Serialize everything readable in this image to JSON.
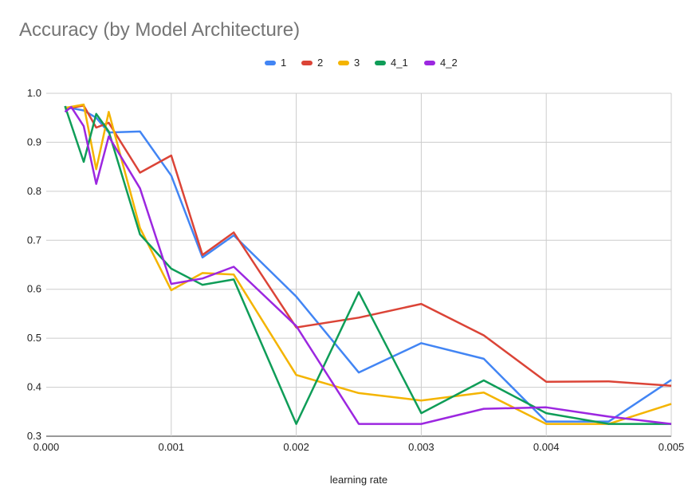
{
  "chart_data": {
    "type": "line",
    "title": "Accuracy (by Model Architecture)",
    "xlabel": "learning rate",
    "ylabel": "",
    "xlim": [
      0.0,
      0.005
    ],
    "ylim": [
      0.3,
      1.0
    ],
    "x_ticks": [
      "0.000",
      "0.001",
      "0.002",
      "0.003",
      "0.004",
      "0.005"
    ],
    "y_ticks": [
      "0.3",
      "0.4",
      "0.5",
      "0.6",
      "0.7",
      "0.8",
      "0.9",
      "1.0"
    ],
    "grid": true,
    "legend_position": "top",
    "series": [
      {
        "name": "1",
        "color": "#4285F4",
        "points": [
          [
            0.00015,
            0.972
          ],
          [
            0.0003,
            0.965
          ],
          [
            0.0004,
            0.95
          ],
          [
            0.0005,
            0.92
          ],
          [
            0.00075,
            0.922
          ],
          [
            0.001,
            0.832
          ],
          [
            0.00125,
            0.665
          ],
          [
            0.0015,
            0.71
          ],
          [
            0.002,
            0.585
          ],
          [
            0.0025,
            0.43
          ],
          [
            0.003,
            0.49
          ],
          [
            0.0035,
            0.458
          ],
          [
            0.004,
            0.33
          ],
          [
            0.0045,
            0.33
          ],
          [
            0.005,
            0.415
          ]
        ]
      },
      {
        "name": "2",
        "color": "#DB4437",
        "points": [
          [
            0.00015,
            0.968
          ],
          [
            0.0003,
            0.975
          ],
          [
            0.0004,
            0.93
          ],
          [
            0.0005,
            0.94
          ],
          [
            0.00075,
            0.838
          ],
          [
            0.001,
            0.873
          ],
          [
            0.00125,
            0.67
          ],
          [
            0.0015,
            0.716
          ],
          [
            0.002,
            0.522
          ],
          [
            0.0025,
            0.542
          ],
          [
            0.003,
            0.57
          ],
          [
            0.0035,
            0.506
          ],
          [
            0.004,
            0.411
          ],
          [
            0.0045,
            0.412
          ],
          [
            0.005,
            0.403
          ]
        ]
      },
      {
        "name": "3",
        "color": "#F4B400",
        "points": [
          [
            0.00015,
            0.97
          ],
          [
            0.0003,
            0.977
          ],
          [
            0.0004,
            0.845
          ],
          [
            0.0005,
            0.962
          ],
          [
            0.00075,
            0.725
          ],
          [
            0.001,
            0.598
          ],
          [
            0.00125,
            0.633
          ],
          [
            0.0015,
            0.63
          ],
          [
            0.002,
            0.425
          ],
          [
            0.0025,
            0.388
          ],
          [
            0.003,
            0.373
          ],
          [
            0.0035,
            0.389
          ],
          [
            0.004,
            0.325
          ],
          [
            0.0045,
            0.325
          ],
          [
            0.005,
            0.366
          ]
        ]
      },
      {
        "name": "4_1",
        "color": "#0F9D58",
        "points": [
          [
            0.00015,
            0.974
          ],
          [
            0.0003,
            0.86
          ],
          [
            0.0004,
            0.958
          ],
          [
            0.0005,
            0.922
          ],
          [
            0.00075,
            0.712
          ],
          [
            0.001,
            0.642
          ],
          [
            0.00125,
            0.609
          ],
          [
            0.0015,
            0.62
          ],
          [
            0.002,
            0.325
          ],
          [
            0.0025,
            0.594
          ],
          [
            0.003,
            0.347
          ],
          [
            0.0035,
            0.414
          ],
          [
            0.004,
            0.347
          ],
          [
            0.0045,
            0.325
          ],
          [
            0.005,
            0.325
          ]
        ]
      },
      {
        "name": "4_2",
        "color": "#9C27E0",
        "points": [
          [
            0.00015,
            0.962
          ],
          [
            0.0002,
            0.972
          ],
          [
            0.0003,
            0.933
          ],
          [
            0.0004,
            0.815
          ],
          [
            0.0005,
            0.912
          ],
          [
            0.00075,
            0.806
          ],
          [
            0.001,
            0.611
          ],
          [
            0.00125,
            0.622
          ],
          [
            0.0015,
            0.646
          ],
          [
            0.002,
            0.525
          ],
          [
            0.0025,
            0.325
          ],
          [
            0.003,
            0.325
          ],
          [
            0.0035,
            0.356
          ],
          [
            0.004,
            0.359
          ],
          [
            0.0045,
            0.34
          ],
          [
            0.005,
            0.325
          ]
        ]
      }
    ]
  }
}
